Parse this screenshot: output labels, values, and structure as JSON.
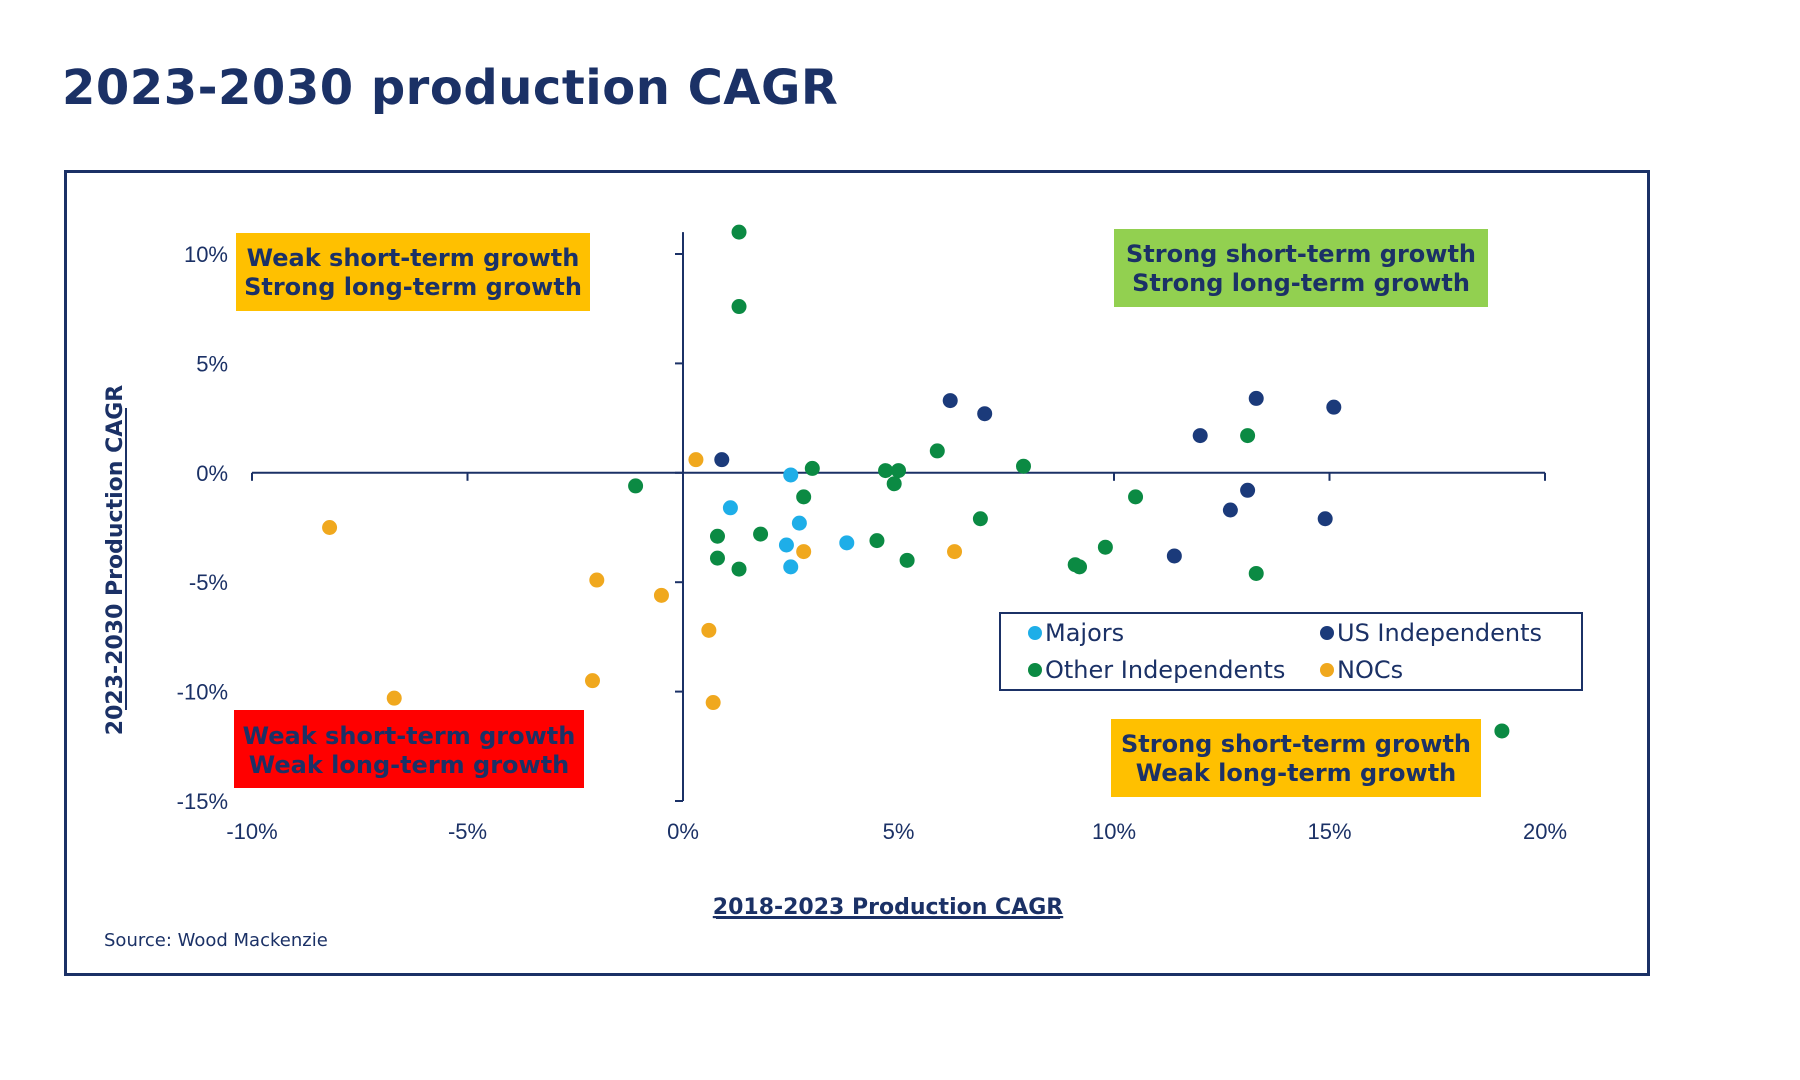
{
  "title": "2023-2030 production CAGR",
  "chart_data": {
    "type": "scatter",
    "xlabel": "2018-2023 Production CAGR",
    "ylabel": "2023-2030 Production CAGR",
    "xlim": [
      -0.1,
      0.2
    ],
    "ylim": [
      -0.15,
      0.1
    ],
    "x_ticks": [
      {
        "v": -0.1,
        "label": "-10%"
      },
      {
        "v": -0.05,
        "label": "-5%"
      },
      {
        "v": 0,
        "label": "0%"
      },
      {
        "v": 0.05,
        "label": "5%"
      },
      {
        "v": 0.1,
        "label": "10%"
      },
      {
        "v": 0.15,
        "label": "15%"
      },
      {
        "v": 0.2,
        "label": "20%"
      }
    ],
    "y_ticks": [
      {
        "v": 0.1,
        "label": "10%"
      },
      {
        "v": 0.05,
        "label": "5%"
      },
      {
        "v": 0,
        "label": "0%"
      },
      {
        "v": -0.05,
        "label": "-5%"
      },
      {
        "v": -0.1,
        "label": "-10%"
      },
      {
        "v": -0.15,
        "label": "-15%"
      }
    ],
    "grid": false,
    "legend_position": "lower-right",
    "series": [
      {
        "name": "Majors",
        "color": "#1eaee8",
        "points": [
          [
            0.011,
            -0.016
          ],
          [
            0.025,
            -0.001
          ],
          [
            0.024,
            -0.033
          ],
          [
            0.027,
            -0.023
          ],
          [
            0.025,
            -0.043
          ],
          [
            0.038,
            -0.032
          ]
        ]
      },
      {
        "name": "US Independents",
        "color": "#1b3a7a",
        "points": [
          [
            0.009,
            0.006
          ],
          [
            0.062,
            0.033
          ],
          [
            0.07,
            0.027
          ],
          [
            0.12,
            0.017
          ],
          [
            0.133,
            0.034
          ],
          [
            0.151,
            0.03
          ],
          [
            0.131,
            -0.008
          ],
          [
            0.127,
            -0.017
          ],
          [
            0.149,
            -0.021
          ],
          [
            0.114,
            -0.038
          ]
        ]
      },
      {
        "name": "Other Independents",
        "color": "#0b8a43",
        "points": [
          [
            0.013,
            0.11
          ],
          [
            0.013,
            0.076
          ],
          [
            -0.011,
            -0.006
          ],
          [
            0.03,
            0.002
          ],
          [
            0.028,
            -0.011
          ],
          [
            0.008,
            -0.029
          ],
          [
            0.018,
            -0.028
          ],
          [
            0.008,
            -0.039
          ],
          [
            0.013,
            -0.044
          ],
          [
            0.047,
            0.001
          ],
          [
            0.05,
            0.001
          ],
          [
            0.049,
            -0.005
          ],
          [
            0.059,
            0.01
          ],
          [
            0.069,
            -0.021
          ],
          [
            0.045,
            -0.031
          ],
          [
            0.052,
            -0.04
          ],
          [
            0.079,
            0.003
          ],
          [
            0.091,
            -0.042
          ],
          [
            0.092,
            -0.043
          ],
          [
            0.098,
            -0.034
          ],
          [
            0.105,
            -0.011
          ],
          [
            0.131,
            0.017
          ],
          [
            0.133,
            -0.046
          ],
          [
            0.19,
            -0.118
          ]
        ]
      },
      {
        "name": "NOCs",
        "color": "#f0a81e",
        "points": [
          [
            0.003,
            0.006
          ],
          [
            -0.082,
            -0.025
          ],
          [
            -0.02,
            -0.049
          ],
          [
            -0.005,
            -0.056
          ],
          [
            0.006,
            -0.072
          ],
          [
            -0.067,
            -0.103
          ],
          [
            -0.021,
            -0.095
          ],
          [
            0.007,
            -0.105
          ],
          [
            0.028,
            -0.036
          ],
          [
            0.063,
            -0.036
          ]
        ]
      }
    ],
    "quadrant_labels": [
      {
        "line1": "Weak short-term growth",
        "line2": "Strong long-term growth",
        "bg": "#ffc000",
        "fg": "#1b3166"
      },
      {
        "line1": "Strong short-term growth",
        "line2": "Strong long-term growth",
        "bg": "#92d050",
        "fg": "#1b3166"
      },
      {
        "line1": "Weak short-term growth",
        "line2": "Weak long-term growth",
        "bg": "#ff0000",
        "fg": "#1b3166"
      },
      {
        "line1": "Strong short-term growth",
        "line2": "Weak long-term growth",
        "bg": "#ffc000",
        "fg": "#1b3166"
      }
    ]
  },
  "source": "Source: Wood Mackenzie"
}
